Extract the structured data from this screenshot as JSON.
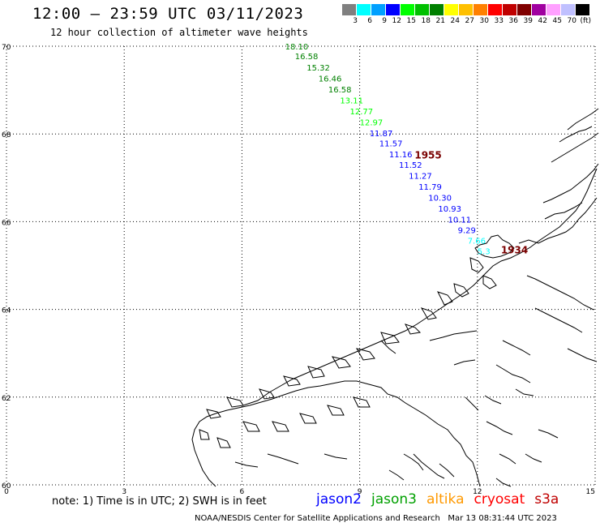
{
  "header": {
    "title": "12:00 – 23:59 UTC 03/11/2023",
    "subtitle": "12 hour collection of altimeter wave heights"
  },
  "color_scale": {
    "colors": [
      "#808080",
      "#00ffff",
      "#00a0ff",
      "#0000ff",
      "#00ff00",
      "#00c000",
      "#008000",
      "#ffff00",
      "#ffc000",
      "#ff8000",
      "#ff0000",
      "#c00000",
      "#800000",
      "#a000a0",
      "#ffa0ff",
      "#c0c0ff",
      "#000000"
    ],
    "labels": [
      "3",
      "6",
      "9",
      "12",
      "15",
      "18",
      "21",
      "24",
      "27",
      "30",
      "33",
      "36",
      "39",
      "42",
      "45",
      "70",
      "(ft)"
    ]
  },
  "map": {
    "lon_range": [
      0,
      15
    ],
    "lat_range": [
      60,
      70
    ],
    "lon_ticks": [
      "0",
      "3",
      "6",
      "9",
      "12",
      "15"
    ],
    "lat_ticks": [
      "70",
      "68",
      "66",
      "64",
      "62",
      "60"
    ],
    "lon_tick_values": [
      0,
      3,
      6,
      9,
      12,
      15
    ],
    "lat_tick_values": [
      70,
      68,
      66,
      64,
      62,
      60
    ],
    "grid": "dotted"
  },
  "wave_heights": [
    {
      "lon": 7.1,
      "lat": 69.93,
      "value": "18.10",
      "color": "#008000"
    },
    {
      "lon": 7.35,
      "lat": 69.7,
      "value": "16.58",
      "color": "#008000"
    },
    {
      "lon": 7.65,
      "lat": 69.45,
      "value": "15.32",
      "color": "#008000"
    },
    {
      "lon": 7.95,
      "lat": 69.2,
      "value": "16.46",
      "color": "#008000"
    },
    {
      "lon": 8.2,
      "lat": 68.95,
      "value": "16.58",
      "color": "#008000"
    },
    {
      "lon": 8.5,
      "lat": 68.7,
      "value": "13.11",
      "color": "#00ff00"
    },
    {
      "lon": 8.75,
      "lat": 68.45,
      "value": "12.77",
      "color": "#00ff00"
    },
    {
      "lon": 9.0,
      "lat": 68.2,
      "value": "12.97",
      "color": "#00ff00"
    },
    {
      "lon": 9.25,
      "lat": 67.95,
      "value": "11.87",
      "color": "#0000ff"
    },
    {
      "lon": 9.5,
      "lat": 67.72,
      "value": "11.57",
      "color": "#0000ff"
    },
    {
      "lon": 9.75,
      "lat": 67.47,
      "value": "11.16",
      "color": "#0000ff"
    },
    {
      "lon": 10.0,
      "lat": 67.23,
      "value": "11.52",
      "color": "#0000ff"
    },
    {
      "lon": 10.25,
      "lat": 66.98,
      "value": "11.27",
      "color": "#0000ff"
    },
    {
      "lon": 10.5,
      "lat": 66.73,
      "value": "11.79",
      "color": "#0000ff"
    },
    {
      "lon": 10.75,
      "lat": 66.48,
      "value": "10.30",
      "color": "#0000ff"
    },
    {
      "lon": 11.0,
      "lat": 66.23,
      "value": "10.93",
      "color": "#0000ff"
    },
    {
      "lon": 11.25,
      "lat": 65.98,
      "value": "10.11",
      "color": "#0000ff"
    },
    {
      "lon": 11.5,
      "lat": 65.74,
      "value": "9.29",
      "color": "#0000ff"
    },
    {
      "lon": 11.75,
      "lat": 65.5,
      "value": "7.66",
      "color": "#00ffff"
    },
    {
      "lon": 12.0,
      "lat": 65.26,
      "value": "5.3",
      "color": "#00ffff"
    }
  ],
  "pass_labels": [
    {
      "lon": 10.4,
      "lat": 67.44,
      "text": "1955"
    },
    {
      "lon": 12.6,
      "lat": 65.28,
      "text": "1934"
    }
  ],
  "note": "note: 1) Time is in UTC; 2) SWH is in feet",
  "satellites": [
    {
      "name": "jason2",
      "color": "#0000ff"
    },
    {
      "name": "jason3",
      "color": "#00a000"
    },
    {
      "name": "altika",
      "color": "#ff9900"
    },
    {
      "name": "cryosat",
      "color": "#ff0000"
    },
    {
      "name": "s3a",
      "color": "#c00000"
    }
  ],
  "footer": "NOAA/NESDIS Center for Satellite Applications and Research   Mar 13 08:31:44 UTC 2023"
}
